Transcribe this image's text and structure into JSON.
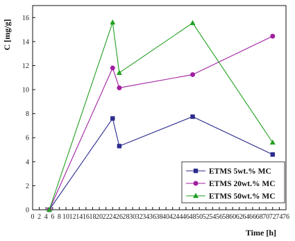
{
  "chart_data": {
    "type": "line",
    "xlabel": "Time [h]",
    "ylabel": "C [mg/g]",
    "xlim": [
      0,
      76
    ],
    "ylim": [
      0,
      17
    ],
    "xticks": [
      0,
      2,
      4,
      6,
      8,
      10,
      12,
      14,
      16,
      18,
      20,
      22,
      24,
      26,
      28,
      30,
      32,
      34,
      36,
      38,
      40,
      42,
      44,
      46,
      48,
      50,
      52,
      54,
      56,
      58,
      60,
      62,
      64,
      66,
      68,
      70,
      72,
      74,
      76
    ],
    "yticks": [
      0,
      2,
      4,
      6,
      8,
      10,
      12,
      14,
      16
    ],
    "grid": false,
    "legend_position": "bottom-right",
    "x": [
      5,
      24,
      26,
      48,
      72
    ],
    "series": [
      {
        "name": "ETMS 5wt.% MC",
        "marker": "square",
        "color": "#2b2b8e",
        "values": [
          0,
          7.6,
          5.3,
          7.75,
          4.6
        ]
      },
      {
        "name": "ETMS 20wt.% MC",
        "marker": "circle",
        "color": "#a020a0",
        "values": [
          0,
          11.8,
          10.15,
          11.25,
          14.45
        ]
      },
      {
        "name": "ETMS 50wt.% MC",
        "marker": "triangle",
        "color": "#21a021",
        "values": [
          0,
          15.6,
          11.4,
          15.55,
          5.6
        ]
      }
    ]
  }
}
